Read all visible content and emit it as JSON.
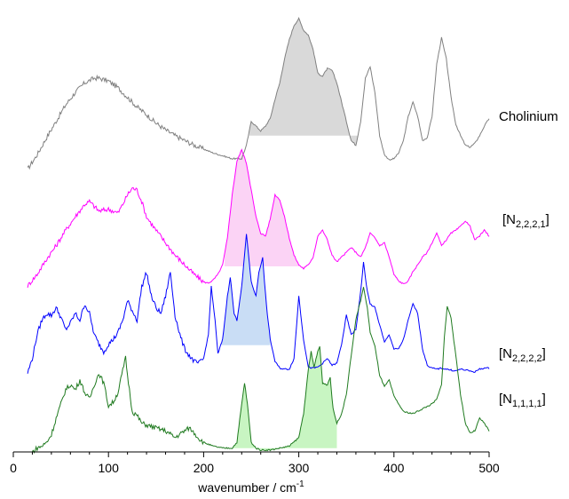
{
  "chart_data": {
    "type": "line",
    "xlabel": "wavenumber / cm",
    "xlabel_superscript": "-1",
    "xlim": [
      0,
      500
    ],
    "x_ticks": [
      0,
      100,
      200,
      300,
      400,
      500
    ],
    "y_axis": "none (stacked spectra, arbitrary offsets)",
    "grid": false,
    "legend": "labels at right of each trace",
    "series": [
      {
        "name": "Cholinium",
        "label_main": "Cholinium",
        "label_sub": "",
        "label_close": "",
        "color": "#808080",
        "fill_color": "#d9d9d9",
        "fill_x_range": [
          248,
          362
        ],
        "x": [
          15,
          25,
          35,
          45,
          55,
          65,
          75,
          85,
          90,
          100,
          110,
          120,
          130,
          140,
          150,
          160,
          170,
          180,
          190,
          200,
          210,
          220,
          230,
          240,
          245,
          250,
          255,
          260,
          265,
          270,
          275,
          280,
          285,
          290,
          295,
          300,
          305,
          310,
          315,
          320,
          325,
          330,
          335,
          340,
          345,
          350,
          355,
          360,
          365,
          370,
          375,
          380,
          385,
          390,
          395,
          400,
          405,
          410,
          415,
          420,
          425,
          430,
          435,
          440,
          445,
          450,
          455,
          460,
          465,
          470,
          475,
          480,
          485,
          490,
          495,
          500
        ],
        "y": [
          0.05,
          0.2,
          0.38,
          0.55,
          0.72,
          0.85,
          0.95,
          1.0,
          1.0,
          0.97,
          0.9,
          0.8,
          0.7,
          0.62,
          0.53,
          0.46,
          0.4,
          0.35,
          0.3,
          0.26,
          0.22,
          0.19,
          0.16,
          0.16,
          0.3,
          0.55,
          0.5,
          0.45,
          0.5,
          0.58,
          0.78,
          0.95,
          1.2,
          1.4,
          1.55,
          1.62,
          1.5,
          1.45,
          1.3,
          1.05,
          1.02,
          1.1,
          1.08,
          0.95,
          0.75,
          0.55,
          0.35,
          0.3,
          0.55,
          1.0,
          1.12,
          0.85,
          0.4,
          0.2,
          0.15,
          0.16,
          0.22,
          0.35,
          0.6,
          0.75,
          0.6,
          0.35,
          0.38,
          0.6,
          1.15,
          1.42,
          1.2,
          0.8,
          0.52,
          0.4,
          0.3,
          0.28,
          0.32,
          0.4,
          0.5,
          0.58
        ]
      },
      {
        "name": "[N2,2,2,1]",
        "label_main": "[N",
        "label_sub": "2,2,2,1",
        "label_close": "]",
        "color": "#ff00ff",
        "fill_color": "#fbd3f5",
        "fill_x_range": [
          222,
          308
        ],
        "x": [
          15,
          25,
          35,
          45,
          55,
          65,
          75,
          80,
          90,
          100,
          110,
          115,
          120,
          125,
          130,
          135,
          140,
          150,
          160,
          170,
          180,
          190,
          200,
          205,
          210,
          215,
          220,
          225,
          230,
          235,
          240,
          245,
          250,
          255,
          260,
          265,
          270,
          275,
          280,
          285,
          290,
          295,
          300,
          305,
          310,
          315,
          320,
          325,
          330,
          335,
          340,
          345,
          350,
          355,
          360,
          365,
          370,
          375,
          380,
          385,
          390,
          395,
          400,
          405,
          410,
          415,
          420,
          425,
          430,
          435,
          440,
          445,
          450,
          455,
          460,
          465,
          470,
          475,
          480,
          485,
          490,
          495,
          500
        ],
        "y": [
          0.0,
          0.12,
          0.28,
          0.42,
          0.58,
          0.72,
          0.85,
          0.88,
          0.78,
          0.8,
          0.76,
          0.85,
          0.95,
          1.02,
          1.0,
          0.88,
          0.72,
          0.58,
          0.45,
          0.32,
          0.22,
          0.12,
          0.04,
          0.03,
          0.06,
          0.12,
          0.22,
          0.5,
          0.95,
          1.3,
          1.42,
          1.28,
          1.0,
          0.72,
          0.55,
          0.52,
          0.7,
          0.95,
          0.9,
          0.72,
          0.5,
          0.32,
          0.22,
          0.18,
          0.22,
          0.3,
          0.52,
          0.58,
          0.48,
          0.32,
          0.25,
          0.3,
          0.35,
          0.4,
          0.35,
          0.3,
          0.4,
          0.55,
          0.5,
          0.42,
          0.45,
          0.3,
          0.12,
          0.05,
          0.02,
          0.05,
          0.15,
          0.22,
          0.3,
          0.35,
          0.45,
          0.55,
          0.42,
          0.48,
          0.55,
          0.58,
          0.62,
          0.68,
          0.62,
          0.48,
          0.52,
          0.58,
          0.52
        ]
      },
      {
        "name": "[N2,2,2,2]",
        "label_main": "[N",
        "label_sub": "2,2,2,2",
        "label_close": "]",
        "color": "#0000ff",
        "fill_color": "#c9ddf5",
        "fill_x_range": [
          218,
          270
        ],
        "x": [
          15,
          20,
          25,
          30,
          35,
          40,
          45,
          50,
          55,
          60,
          65,
          70,
          75,
          80,
          85,
          90,
          95,
          100,
          105,
          110,
          115,
          120,
          125,
          130,
          135,
          140,
          145,
          150,
          155,
          160,
          165,
          170,
          175,
          180,
          185,
          190,
          195,
          200,
          205,
          208,
          212,
          215,
          220,
          225,
          228,
          232,
          235,
          240,
          245,
          250,
          255,
          258,
          262,
          266,
          270,
          275,
          280,
          285,
          290,
          295,
          300,
          305,
          310,
          315,
          320,
          325,
          330,
          335,
          340,
          345,
          350,
          355,
          360,
          365,
          368,
          372,
          375,
          380,
          385,
          390,
          395,
          400,
          405,
          410,
          415,
          420,
          425,
          430,
          435,
          440,
          445,
          450,
          455,
          460,
          465,
          470,
          475,
          480,
          485,
          490,
          495,
          500
        ],
        "y": [
          0.0,
          0.15,
          0.4,
          0.55,
          0.62,
          0.6,
          0.68,
          0.58,
          0.45,
          0.52,
          0.62,
          0.55,
          0.72,
          0.62,
          0.4,
          0.3,
          0.22,
          0.3,
          0.35,
          0.42,
          0.55,
          0.75,
          0.65,
          0.55,
          0.9,
          1.05,
          0.8,
          0.68,
          0.62,
          0.8,
          1.05,
          0.6,
          0.4,
          0.25,
          0.18,
          0.12,
          0.1,
          0.15,
          0.4,
          0.9,
          0.55,
          0.2,
          0.35,
          0.8,
          1.0,
          0.62,
          0.55,
          0.9,
          1.45,
          0.95,
          0.8,
          1.05,
          1.2,
          0.7,
          0.35,
          0.12,
          0.05,
          0.04,
          0.04,
          0.15,
          0.8,
          0.35,
          0.06,
          0.05,
          0.06,
          0.1,
          0.15,
          0.08,
          0.1,
          0.3,
          0.6,
          0.4,
          0.45,
          0.85,
          1.15,
          0.85,
          0.72,
          0.68,
          0.5,
          0.32,
          0.4,
          0.25,
          0.25,
          0.35,
          0.55,
          0.72,
          0.62,
          0.25,
          0.08,
          0.05,
          0.04,
          0.05,
          0.04,
          0.03,
          0.02,
          0.04,
          0.03,
          0.02,
          0.01,
          0.04,
          0.05,
          0.05
        ]
      },
      {
        "name": "[N1,1,1,1]",
        "label_main": "[N",
        "label_sub": "1,1,1,1",
        "label_close": "]",
        "color": "#1f7a1f",
        "fill_color": "#c8f5c2",
        "fill_x_range": [
          228,
          340
        ],
        "x": [
          20,
          25,
          30,
          35,
          40,
          45,
          50,
          55,
          60,
          65,
          70,
          75,
          80,
          85,
          90,
          95,
          100,
          105,
          110,
          115,
          118,
          120,
          125,
          130,
          135,
          140,
          150,
          160,
          170,
          180,
          185,
          190,
          195,
          200,
          210,
          220,
          230,
          235,
          240,
          243,
          246,
          250,
          255,
          260,
          270,
          280,
          290,
          300,
          305,
          310,
          313,
          316,
          320,
          322,
          325,
          330,
          333,
          336,
          340,
          345,
          350,
          355,
          360,
          365,
          368,
          372,
          375,
          380,
          385,
          390,
          395,
          400,
          410,
          420,
          430,
          440,
          445,
          450,
          453,
          456,
          460,
          465,
          470,
          475,
          480,
          485,
          490,
          495,
          500
        ],
        "y": [
          0.0,
          0.04,
          0.06,
          0.1,
          0.18,
          0.35,
          0.5,
          0.65,
          0.7,
          0.65,
          0.75,
          0.62,
          0.55,
          0.7,
          0.82,
          0.72,
          0.48,
          0.52,
          0.62,
          0.85,
          0.98,
          0.8,
          0.42,
          0.38,
          0.3,
          0.28,
          0.25,
          0.22,
          0.15,
          0.22,
          0.25,
          0.2,
          0.14,
          0.1,
          0.06,
          0.04,
          0.04,
          0.1,
          0.5,
          0.72,
          0.5,
          0.1,
          0.04,
          0.02,
          0.02,
          0.04,
          0.06,
          0.15,
          0.4,
          0.85,
          1.05,
          0.88,
          1.05,
          1.1,
          0.72,
          0.7,
          0.78,
          0.45,
          0.3,
          0.4,
          0.6,
          1.0,
          1.38,
          1.58,
          1.72,
          1.5,
          1.25,
          1.1,
          0.8,
          0.68,
          0.75,
          0.58,
          0.42,
          0.4,
          0.45,
          0.5,
          0.55,
          0.7,
          1.2,
          1.52,
          1.4,
          1.0,
          0.6,
          0.3,
          0.2,
          0.22,
          0.35,
          0.3,
          0.22
        ]
      }
    ]
  }
}
